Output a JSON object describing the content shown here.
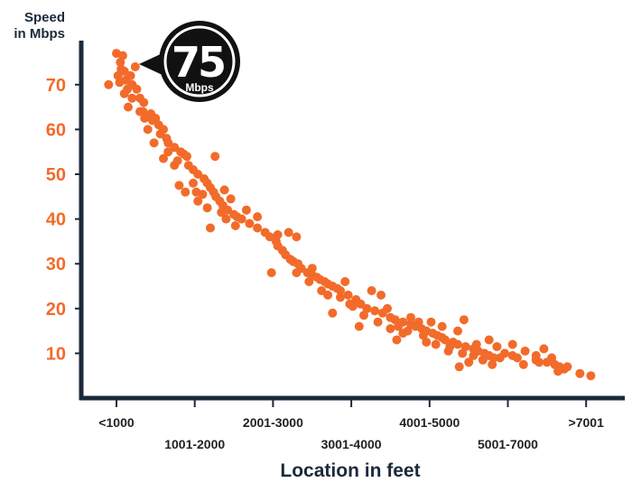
{
  "chart_data": {
    "type": "scatter",
    "title": "",
    "ylabel": "Speed in Mbps",
    "ylabel_lines": [
      "Speed",
      "in Mbps"
    ],
    "xlabel": "Location in feet",
    "ylim": [
      0,
      80
    ],
    "yticks": [
      10,
      20,
      30,
      40,
      50,
      60,
      70
    ],
    "categories": [
      "<1000",
      "1001-2000",
      "2001-3000",
      "3001-4000",
      "4001-5000",
      "5001-7000",
      ">7001"
    ],
    "xlim": [
      0,
      6.15
    ],
    "grid": false,
    "point_color": "#f26b2a",
    "axis_color": "#1b2a3a",
    "points": [
      [
        -0.1,
        70
      ],
      [
        0.0,
        77
      ],
      [
        0.08,
        76.5
      ],
      [
        0.05,
        75
      ],
      [
        0.1,
        73
      ],
      [
        0.18,
        72
      ],
      [
        0.12,
        71
      ],
      [
        0.04,
        70.5
      ],
      [
        0.2,
        70
      ],
      [
        0.26,
        69
      ],
      [
        0.14,
        69
      ],
      [
        0.3,
        67
      ],
      [
        0.35,
        66
      ],
      [
        0.15,
        65
      ],
      [
        0.34,
        64
      ],
      [
        0.44,
        63.5
      ],
      [
        0.46,
        62
      ],
      [
        0.5,
        62.5
      ],
      [
        0.54,
        61
      ],
      [
        0.6,
        60
      ],
      [
        0.56,
        59
      ],
      [
        0.64,
        58
      ],
      [
        0.66,
        57
      ],
      [
        0.74,
        56
      ],
      [
        0.82,
        55
      ],
      [
        0.86,
        54.5
      ],
      [
        0.9,
        54
      ],
      [
        0.78,
        53
      ],
      [
        0.92,
        52
      ],
      [
        0.98,
        51
      ],
      [
        1.04,
        50
      ],
      [
        1.12,
        49
      ],
      [
        1.16,
        48
      ],
      [
        1.2,
        47
      ],
      [
        1.24,
        46
      ],
      [
        1.27,
        45
      ],
      [
        1.32,
        44
      ],
      [
        1.36,
        43
      ],
      [
        1.42,
        42
      ],
      [
        1.5,
        41
      ],
      [
        1.54,
        40.5
      ],
      [
        1.6,
        40
      ],
      [
        1.7,
        39
      ],
      [
        1.26,
        54
      ],
      [
        0.8,
        47.5
      ],
      [
        0.88,
        46
      ],
      [
        1.38,
        46.5
      ],
      [
        1.46,
        44.5
      ],
      [
        1.8,
        38
      ],
      [
        1.9,
        37
      ],
      [
        1.96,
        36
      ],
      [
        2.04,
        35
      ],
      [
        2.06,
        34
      ],
      [
        2.12,
        33
      ],
      [
        2.16,
        32
      ],
      [
        2.22,
        31
      ],
      [
        2.26,
        30.5
      ],
      [
        2.32,
        30
      ],
      [
        2.36,
        29
      ],
      [
        2.44,
        28
      ],
      [
        2.5,
        27.5
      ],
      [
        2.56,
        27
      ],
      [
        2.6,
        26.5
      ],
      [
        2.66,
        26
      ],
      [
        2.7,
        25.5
      ],
      [
        2.76,
        25
      ],
      [
        2.82,
        24.5
      ],
      [
        2.86,
        24
      ],
      [
        2.96,
        23
      ],
      [
        3.06,
        22
      ],
      [
        3.12,
        21
      ],
      [
        3.2,
        20
      ],
      [
        3.3,
        19.5
      ],
      [
        3.4,
        19
      ],
      [
        3.5,
        18
      ],
      [
        3.56,
        17.5
      ],
      [
        3.66,
        17
      ],
      [
        3.76,
        16.5
      ],
      [
        3.82,
        16
      ],
      [
        3.9,
        15.5
      ],
      [
        3.96,
        15
      ],
      [
        4.04,
        14.5
      ],
      [
        4.1,
        14
      ],
      [
        4.16,
        13.5
      ],
      [
        4.2,
        13
      ],
      [
        4.3,
        12.5
      ],
      [
        4.36,
        12
      ],
      [
        4.46,
        11.5
      ],
      [
        4.56,
        11
      ],
      [
        4.62,
        10.5
      ],
      [
        4.7,
        10
      ],
      [
        4.76,
        9.5
      ],
      [
        4.82,
        9
      ],
      [
        4.96,
        10
      ],
      [
        5.06,
        9.5
      ],
      [
        5.12,
        9
      ],
      [
        5.22,
        10.5
      ],
      [
        5.36,
        9.5
      ],
      [
        5.5,
        8
      ],
      [
        5.6,
        7.5
      ],
      [
        5.66,
        7
      ],
      [
        5.72,
        6.5
      ],
      [
        6.06,
        5
      ],
      [
        2.2,
        37
      ],
      [
        2.3,
        36
      ],
      [
        2.06,
        36.5
      ],
      [
        1.98,
        28
      ],
      [
        2.3,
        28
      ],
      [
        2.5,
        29
      ],
      [
        2.76,
        19
      ],
      [
        2.92,
        26
      ],
      [
        2.98,
        21
      ],
      [
        3.1,
        16
      ],
      [
        3.26,
        24
      ],
      [
        3.38,
        23
      ],
      [
        3.46,
        20
      ],
      [
        3.58,
        13
      ],
      [
        3.76,
        18
      ],
      [
        3.86,
        17
      ],
      [
        3.66,
        14.5
      ],
      [
        3.96,
        12.5
      ],
      [
        4.02,
        17
      ],
      [
        4.16,
        16
      ],
      [
        4.26,
        11.5
      ],
      [
        4.36,
        15
      ],
      [
        4.44,
        17.5
      ],
      [
        4.5,
        8
      ],
      [
        4.6,
        12
      ],
      [
        4.76,
        13
      ],
      [
        4.86,
        11.5
      ],
      [
        5.06,
        12
      ],
      [
        5.36,
        8.5
      ],
      [
        5.46,
        11
      ],
      [
        5.56,
        9
      ],
      [
        5.76,
        7
      ],
      [
        4.38,
        7
      ],
      [
        4.8,
        7.5
      ],
      [
        1.52,
        38.5
      ],
      [
        1.34,
        41.5
      ],
      [
        1.16,
        42.5
      ],
      [
        1.04,
        44
      ],
      [
        0.98,
        48
      ],
      [
        1.02,
        46
      ],
      [
        1.1,
        45.5
      ],
      [
        0.74,
        52
      ],
      [
        0.66,
        55
      ],
      [
        0.6,
        53.5
      ],
      [
        0.48,
        57
      ],
      [
        0.4,
        60
      ],
      [
        0.36,
        62.5
      ],
      [
        0.3,
        64
      ],
      [
        0.2,
        67
      ],
      [
        0.1,
        68
      ],
      [
        0.02,
        72
      ],
      [
        0.06,
        73.5
      ],
      [
        0.24,
        74
      ],
      [
        1.2,
        38
      ],
      [
        1.4,
        40
      ],
      [
        1.66,
        42
      ],
      [
        1.8,
        40.5
      ],
      [
        2.46,
        26
      ],
      [
        2.62,
        24
      ],
      [
        2.7,
        23
      ],
      [
        2.86,
        22.5
      ],
      [
        3.02,
        20.5
      ],
      [
        3.16,
        18.5
      ],
      [
        3.34,
        17
      ],
      [
        3.5,
        15.5
      ],
      [
        3.6,
        16
      ],
      [
        3.72,
        15
      ],
      [
        3.92,
        14
      ],
      [
        4.08,
        12
      ],
      [
        4.24,
        10.5
      ],
      [
        4.42,
        10
      ],
      [
        4.56,
        9.5
      ],
      [
        4.68,
        8.5
      ],
      [
        4.9,
        9
      ],
      [
        5.2,
        7.5
      ],
      [
        5.4,
        8
      ],
      [
        5.64,
        6
      ],
      [
        5.92,
        5.5
      ]
    ]
  },
  "badge": {
    "number": "75",
    "unit": "Mbps",
    "bg_color": "#111111"
  }
}
